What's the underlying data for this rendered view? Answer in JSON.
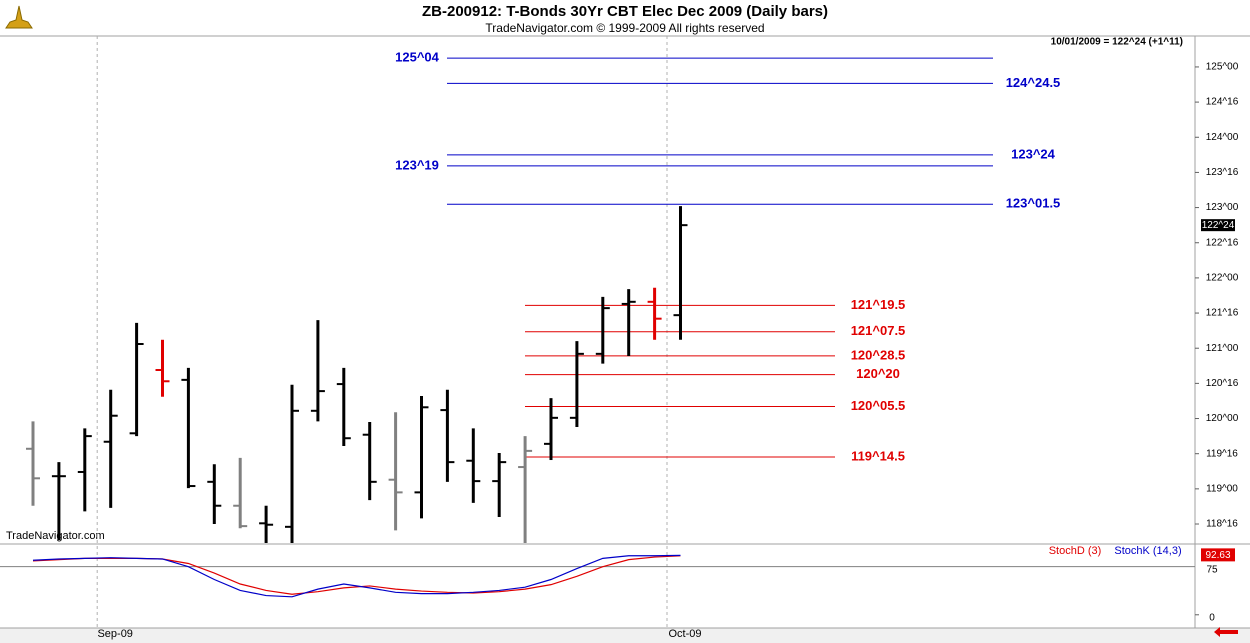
{
  "chart_data": [
    {
      "type": "ohlc",
      "title": "ZB-200912:  T-Bonds 30Yr CBT Elec Dec 2009  (Daily bars)",
      "subtitle": "TradeNavigator.com © 1999-2009 All rights reserved",
      "info": "10/01/2009 = 122^24 (+1^11)",
      "watermark": "TradeNavigator.com",
      "categories": [
        null,
        null,
        null,
        "Sep-09",
        null,
        null,
        null,
        null,
        null,
        null,
        null,
        null,
        null,
        null,
        null,
        null,
        null,
        null,
        null,
        null,
        null,
        null,
        null,
        null,
        null,
        "Oct-09"
      ],
      "open": [
        119.57,
        119.18,
        119.24,
        119.67,
        119.79,
        120.69,
        120.55,
        119.1,
        118.76,
        118.51,
        118.46,
        120.11,
        120.49,
        119.77,
        119.13,
        118.95,
        120.12,
        119.4,
        119.11,
        119.31,
        119.64,
        120.01,
        120.92,
        121.63,
        121.66,
        121.47
      ],
      "high": [
        119.96,
        119.38,
        119.86,
        120.41,
        121.36,
        121.12,
        120.72,
        119.35,
        119.44,
        118.76,
        120.48,
        121.4,
        120.72,
        119.95,
        120.09,
        120.32,
        120.41,
        119.86,
        119.51,
        119.75,
        120.29,
        121.1,
        121.73,
        121.84,
        121.86,
        123.02
      ],
      "low": [
        118.76,
        118.27,
        118.68,
        118.73,
        119.75,
        120.31,
        119.01,
        118.5,
        118.44,
        118.23,
        118.23,
        119.96,
        119.61,
        118.84,
        118.41,
        118.58,
        119.1,
        118.8,
        118.6,
        118.23,
        119.41,
        119.88,
        120.78,
        120.89,
        121.12,
        121.12
      ],
      "close": [
        119.15,
        119.18,
        119.75,
        120.04,
        121.06,
        120.53,
        119.04,
        118.76,
        118.47,
        118.49,
        120.11,
        120.39,
        119.72,
        119.1,
        118.95,
        120.16,
        119.38,
        119.11,
        119.38,
        119.54,
        120.01,
        120.92,
        121.57,
        121.66,
        121.42,
        122.75
      ],
      "colors": [
        "#808080",
        "#000000",
        "#000000",
        "#000000",
        "#000000",
        "#e00000",
        "#000000",
        "#000000",
        "#808080",
        "#000000",
        "#000000",
        "#000000",
        "#000000",
        "#000000",
        "#808080",
        "#000000",
        "#000000",
        "#000000",
        "#000000",
        "#808080",
        "#000000",
        "#000000",
        "#000000",
        "#000000",
        "#e00000",
        "#000000"
      ],
      "ylim": [
        118.23,
        125.44
      ],
      "yticks": [
        {
          "value": 125,
          "label": "125^00"
        },
        {
          "value": 124.5,
          "label": "124^16"
        },
        {
          "value": 124,
          "label": "124^00"
        },
        {
          "value": 123.5,
          "label": "123^16"
        },
        {
          "value": 123,
          "label": "123^00"
        },
        {
          "value": 122.5,
          "label": "122^16"
        },
        {
          "value": 122,
          "label": "122^00"
        },
        {
          "value": 121.5,
          "label": "121^16"
        },
        {
          "value": 121,
          "label": "121^00"
        },
        {
          "value": 120.5,
          "label": "120^16"
        },
        {
          "value": 120,
          "label": "120^00"
        },
        {
          "value": 119.5,
          "label": "119^16"
        },
        {
          "value": 119,
          "label": "119^00"
        },
        {
          "value": 118.5,
          "label": "118^16"
        }
      ],
      "last_price": {
        "value": 122.75,
        "label": "122^24"
      },
      "levels": [
        {
          "value": 125.125,
          "label": "125^04",
          "color": "#0000c8",
          "label_side": "left"
        },
        {
          "value": 124.765625,
          "label": "124^24.5",
          "color": "#0000c8",
          "label_side": "right"
        },
        {
          "value": 123.75,
          "label": "123^24",
          "color": "#0000c8",
          "label_side": "right"
        },
        {
          "value": 123.59375,
          "label": "123^19",
          "color": "#0000c8",
          "label_side": "left"
        },
        {
          "value": 123.046875,
          "label": "123^01.5",
          "color": "#0000c8",
          "label_side": "right"
        },
        {
          "value": 121.609375,
          "label": "121^19.5",
          "color": "#e00000",
          "label_side": "right"
        },
        {
          "value": 121.234375,
          "label": "121^07.5",
          "color": "#e00000",
          "label_side": "right"
        },
        {
          "value": 120.890625,
          "label": "120^28.5",
          "color": "#e00000",
          "label_side": "right"
        },
        {
          "value": 120.625,
          "label": "120^20",
          "color": "#e00000",
          "label_side": "right"
        },
        {
          "value": 120.171875,
          "label": "120^05.5",
          "color": "#e00000",
          "label_side": "right"
        },
        {
          "value": 119.453125,
          "label": "119^14.5",
          "color": "#e00000",
          "label_side": "right"
        }
      ]
    },
    {
      "type": "line",
      "series": [
        {
          "name": "StochD (3)",
          "color": "#e00000",
          "values": [
            84,
            86,
            88,
            88,
            88,
            87,
            80,
            65,
            48,
            38,
            32,
            36,
            42,
            45,
            40,
            37,
            35,
            34,
            36,
            40,
            47,
            60,
            75,
            86,
            90,
            92
          ]
        },
        {
          "name": "StochK (14,3)",
          "color": "#0000c8",
          "values": [
            85,
            87,
            88,
            89,
            88,
            87,
            75,
            55,
            38,
            30,
            28,
            40,
            48,
            42,
            35,
            33,
            33,
            35,
            38,
            43,
            55,
            72,
            88,
            92,
            92,
            92.63
          ]
        }
      ],
      "last_value": 92.63,
      "ylim": [
        -20.6,
        108.8
      ],
      "yticks": [
        0,
        75
      ]
    }
  ]
}
